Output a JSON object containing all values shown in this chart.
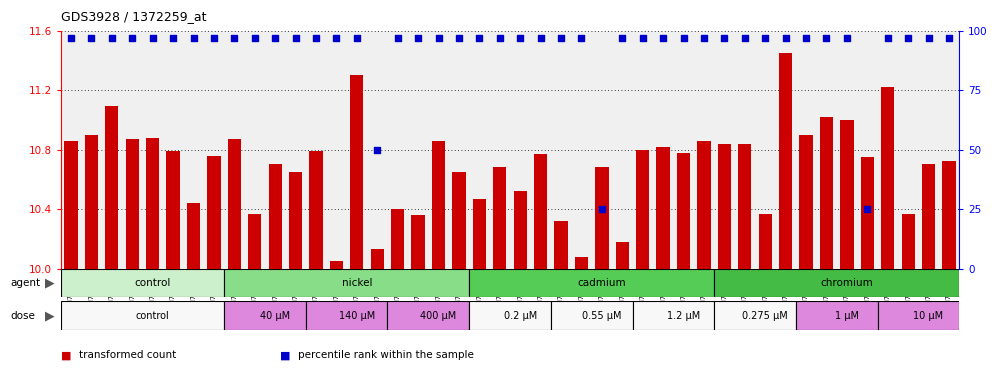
{
  "title": "GDS3928 / 1372259_at",
  "samples": [
    "GSM782280",
    "GSM782281",
    "GSM782291",
    "GSM782292",
    "GSM782302",
    "GSM782303",
    "GSM782313",
    "GSM782314",
    "GSM782282",
    "GSM782293",
    "GSM782304",
    "GSM782315",
    "GSM782283",
    "GSM782294",
    "GSM782305",
    "GSM782316",
    "GSM782284",
    "GSM782295",
    "GSM782306",
    "GSM782317",
    "GSM782288",
    "GSM782299",
    "GSM782310",
    "GSM782321",
    "GSM782289",
    "GSM782300",
    "GSM782311",
    "GSM782322",
    "GSM782290",
    "GSM782301",
    "GSM782312",
    "GSM782323",
    "GSM782285",
    "GSM782296",
    "GSM782307",
    "GSM782318",
    "GSM782286",
    "GSM782297",
    "GSM782308",
    "GSM782319",
    "GSM782287",
    "GSM782298",
    "GSM782309",
    "GSM782320"
  ],
  "values": [
    10.86,
    10.9,
    11.09,
    10.87,
    10.88,
    10.79,
    10.44,
    10.76,
    10.87,
    10.37,
    10.7,
    10.65,
    10.79,
    10.05,
    11.3,
    10.13,
    10.4,
    10.36,
    10.86,
    10.65,
    10.47,
    10.68,
    10.52,
    10.77,
    10.32,
    10.08,
    10.68,
    10.18,
    10.8,
    10.82,
    10.78,
    10.86,
    10.84,
    10.84,
    10.37,
    11.45,
    10.9,
    11.02,
    11.0,
    10.75,
    11.22,
    10.37,
    10.7,
    10.72
  ],
  "percentile": [
    97,
    97,
    97,
    97,
    97,
    97,
    97,
    97,
    97,
    97,
    97,
    97,
    97,
    97,
    97,
    50,
    97,
    97,
    97,
    97,
    97,
    97,
    97,
    97,
    97,
    97,
    25,
    97,
    97,
    97,
    97,
    97,
    97,
    97,
    97,
    97,
    97,
    97,
    97,
    25,
    97,
    97,
    97,
    97
  ],
  "ylim_left": [
    10.0,
    11.6
  ],
  "ylim_right": [
    0,
    100
  ],
  "yticks_left": [
    10.0,
    10.4,
    10.8,
    11.2,
    11.6
  ],
  "yticks_right": [
    0,
    25,
    50,
    75,
    100
  ],
  "bar_color": "#cc0000",
  "dot_color": "#0000cc",
  "bg_color": "#f0f0f0",
  "agent_groups": [
    {
      "label": "control",
      "color": "#ccf0cc",
      "start": 0,
      "end": 8
    },
    {
      "label": "nickel",
      "color": "#88dd88",
      "start": 8,
      "end": 20
    },
    {
      "label": "cadmium",
      "color": "#55cc55",
      "start": 20,
      "end": 32
    },
    {
      "label": "chromium",
      "color": "#44bb44",
      "start": 32,
      "end": 44
    }
  ],
  "dose_groups": [
    {
      "label": "control",
      "color": "#f8f8f8",
      "start": 0,
      "end": 8
    },
    {
      "label": "40 μM",
      "color": "#dd88dd",
      "start": 8,
      "end": 12
    },
    {
      "label": "140 μM",
      "color": "#dd88dd",
      "start": 12,
      "end": 16
    },
    {
      "label": "400 μM",
      "color": "#dd88dd",
      "start": 16,
      "end": 20
    },
    {
      "label": "0.2 μM",
      "color": "#f8f8f8",
      "start": 20,
      "end": 24
    },
    {
      "label": "0.55 μM",
      "color": "#f8f8f8",
      "start": 24,
      "end": 28
    },
    {
      "label": "1.2 μM",
      "color": "#f8f8f8",
      "start": 28,
      "end": 32
    },
    {
      "label": "0.275 μM",
      "color": "#f8f8f8",
      "start": 32,
      "end": 36
    },
    {
      "label": "1 μM",
      "color": "#dd88dd",
      "start": 36,
      "end": 40
    },
    {
      "label": "10 μM",
      "color": "#dd88dd",
      "start": 40,
      "end": 44
    }
  ],
  "legend": [
    {
      "label": "transformed count",
      "color": "#cc0000"
    },
    {
      "label": "percentile rank within the sample",
      "color": "#0000cc"
    }
  ]
}
